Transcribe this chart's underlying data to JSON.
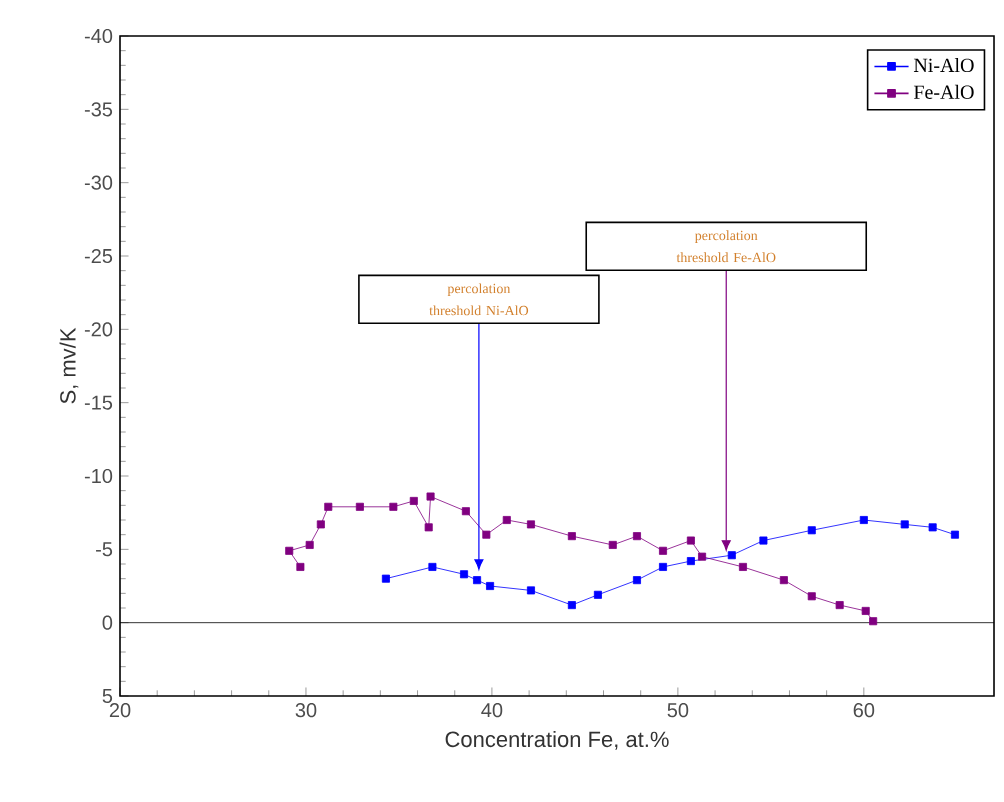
{
  "chart_data": {
    "type": "line",
    "xlabel": "Concentration Fe, at.%",
    "ylabel": "S, mv/K",
    "xlim": [
      20,
      67
    ],
    "xticks": [
      20,
      30,
      40,
      50,
      60
    ],
    "ylim": [
      5,
      -40
    ],
    "yticks": [
      -40,
      -35,
      -30,
      -25,
      -20,
      -15,
      -10,
      -5,
      0,
      5
    ],
    "legend": "top right",
    "marker": "square",
    "grid": false,
    "ref_lines": [
      {
        "axis": "y",
        "value": 0
      }
    ],
    "annotations": [
      {
        "text": "percolation threshold Ni-AlO",
        "x": 39.3,
        "y": -3.5
      },
      {
        "text": "percolation threshold Fe-AlO",
        "x": 52.6,
        "y": -4.8
      }
    ],
    "series": [
      {
        "name": "Ni-AlO",
        "color": "#0000ff",
        "x": [
          34.3,
          36.8,
          38.5,
          39.2,
          39.9,
          42.1,
          44.3,
          45.7,
          47.8,
          49.2,
          50.7,
          52.9,
          54.6,
          57.2,
          60.0,
          62.2,
          63.7,
          64.9
        ],
        "values": [
          -3.0,
          -3.8,
          -3.3,
          -2.9,
          -2.5,
          -2.2,
          -1.2,
          -1.9,
          -2.9,
          -3.8,
          -4.2,
          -4.6,
          -5.6,
          -6.3,
          -7.0,
          -6.7,
          -6.5,
          -6.0
        ]
      },
      {
        "name": "Fe-AlO",
        "color": "#800080",
        "x": [
          29.7,
          29.1,
          30.2,
          30.8,
          31.2,
          32.9,
          34.7,
          35.8,
          36.6,
          36.7,
          38.6,
          39.7,
          40.8,
          42.1,
          44.3,
          46.5,
          47.8,
          49.2,
          50.7,
          51.3,
          53.5,
          55.7,
          57.2,
          58.7,
          60.1,
          60.5
        ],
        "values": [
          -3.8,
          -4.9,
          -5.3,
          -6.7,
          -7.9,
          -7.9,
          -7.9,
          -8.3,
          -6.5,
          -8.6,
          -7.6,
          -6.0,
          -7.0,
          -6.7,
          -5.9,
          -5.3,
          -5.9,
          -4.9,
          -5.6,
          -4.5,
          -3.8,
          -2.9,
          -1.8,
          -1.2,
          -0.8,
          -0.1
        ]
      }
    ]
  }
}
